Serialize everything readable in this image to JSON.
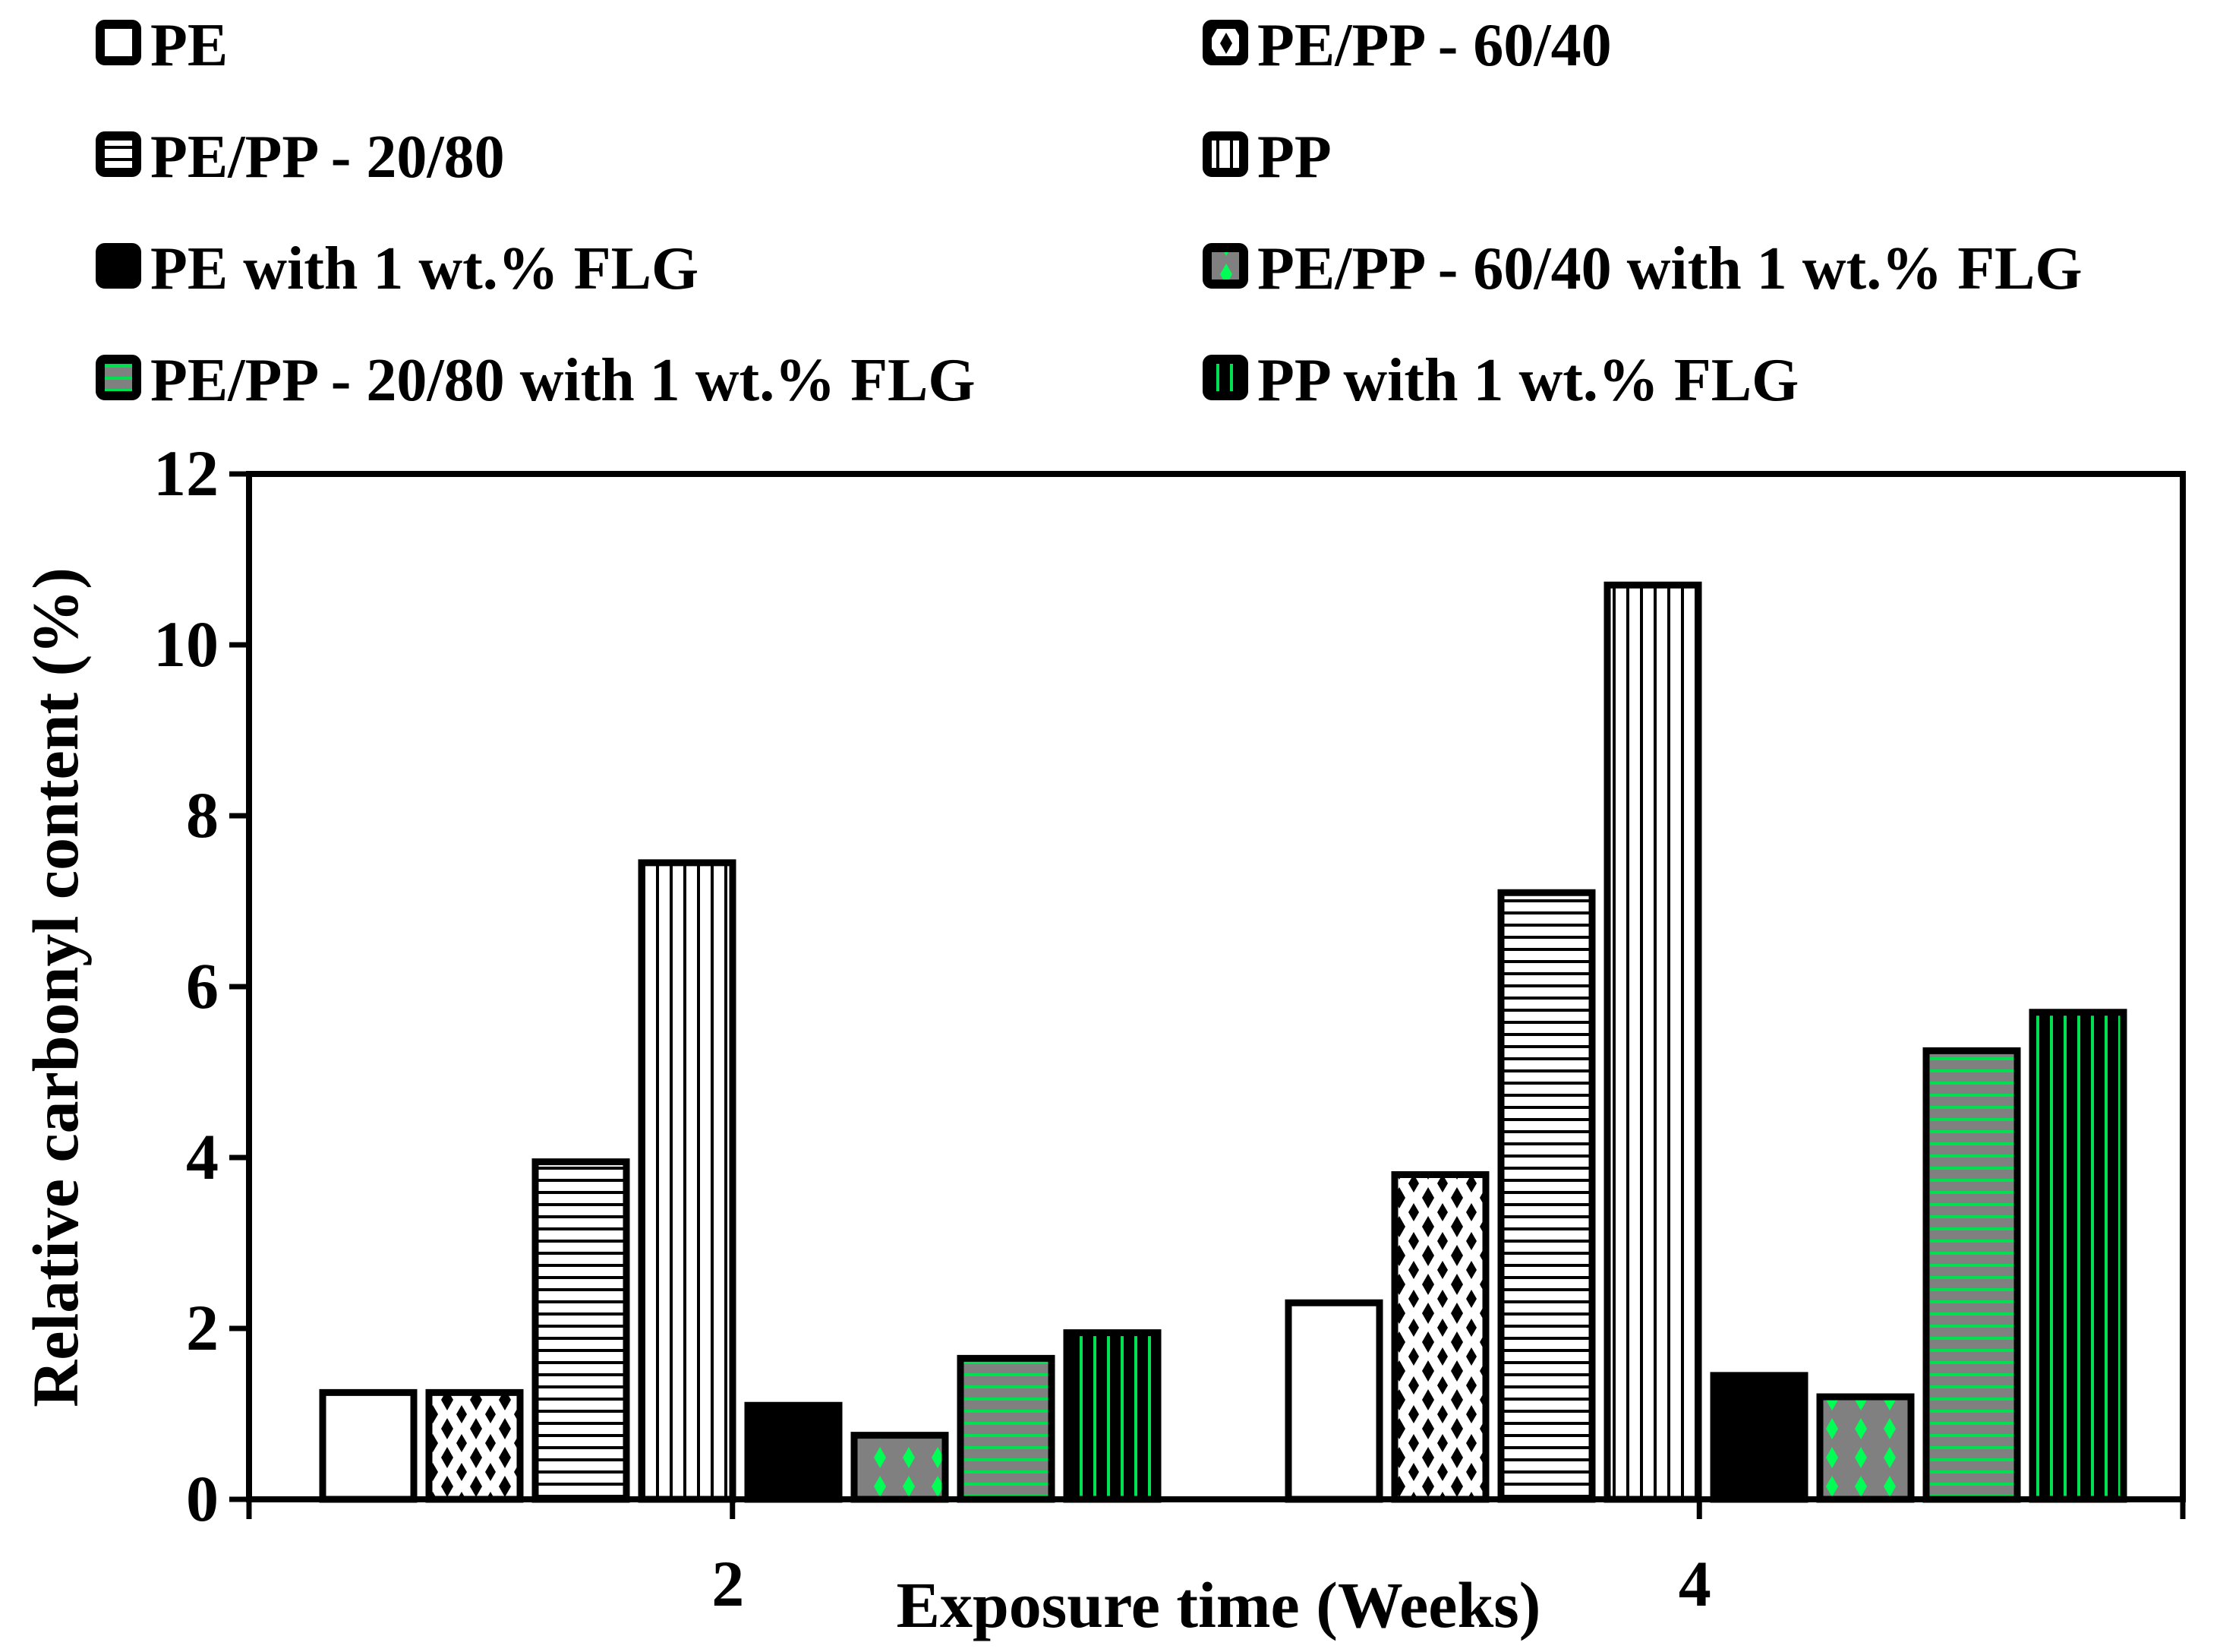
{
  "chart_data": {
    "type": "bar",
    "title": "",
    "xlabel": "Exposure time (Weeks)",
    "ylabel": "Relative carbonyl content (%)",
    "ylim": [
      0,
      12
    ],
    "yticks": [
      0,
      2,
      4,
      6,
      8,
      10,
      12
    ],
    "categories": [
      "2",
      "4"
    ],
    "grid": false,
    "legend_position": "top",
    "series": [
      {
        "name": "PE",
        "values": [
          1.25,
          2.3
        ],
        "pattern": "empty",
        "color": "#ffffff"
      },
      {
        "name": "PE/PP - 60/40",
        "values": [
          1.25,
          3.8
        ],
        "pattern": "diamonds",
        "color": "#000000"
      },
      {
        "name": "PE/PP - 20/80",
        "values": [
          3.95,
          7.1
        ],
        "pattern": "hlines",
        "color": "#000000"
      },
      {
        "name": "PP",
        "values": [
          7.45,
          10.7
        ],
        "pattern": "vlines",
        "color": "#000000"
      },
      {
        "name": "PE with 1 wt.% FLG",
        "values": [
          1.1,
          1.45
        ],
        "pattern": "solid",
        "color": "#000000"
      },
      {
        "name": "PE/PP - 60/40 with 1 wt.% FLG",
        "values": [
          0.75,
          1.2
        ],
        "pattern": "diamonds",
        "color": "#00ff55"
      },
      {
        "name": "PE/PP - 20/80 with 1 wt.% FLG",
        "values": [
          1.65,
          5.25
        ],
        "pattern": "hlines",
        "color": "#00e050"
      },
      {
        "name": "PP with 1 wt.% FLG",
        "values": [
          1.95,
          5.7
        ],
        "pattern": "vlines",
        "color": "#00e050"
      }
    ]
  }
}
